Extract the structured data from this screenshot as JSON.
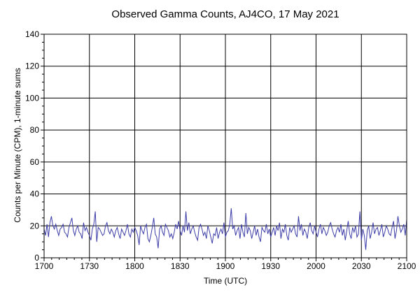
{
  "chart_data": {
    "type": "line",
    "title": "Observed Gamma Counts, AJ4CO, 17 May 2021",
    "xlabel": "Time (UTC)",
    "ylabel": "Counts per Minute (CPM), 1-minute sums",
    "x_ticks": [
      "1700",
      "1730",
      "1800",
      "1830",
      "1900",
      "1930",
      "2000",
      "2030",
      "2100"
    ],
    "y_ticks": [
      "0",
      "20",
      "40",
      "60",
      "80",
      "100",
      "120",
      "140"
    ],
    "xlim": [
      0,
      240
    ],
    "ylim": [
      0,
      140
    ],
    "grid": true,
    "series_color": "#3c3ca8",
    "series": [
      {
        "values": [
          18,
          14,
          21,
          13,
          22,
          26,
          20,
          18,
          21,
          17,
          14,
          18,
          19,
          21,
          16,
          15,
          13,
          19,
          22,
          25,
          17,
          14,
          18,
          20,
          16,
          15,
          12,
          22,
          17,
          19,
          16,
          14,
          11,
          18,
          21,
          29,
          10,
          19,
          18,
          16,
          14,
          15,
          20,
          22,
          17,
          15,
          18,
          16,
          13,
          17,
          19,
          15,
          12,
          18,
          16,
          14,
          17,
          21,
          15,
          13,
          18,
          16,
          19,
          17,
          14,
          8,
          20,
          17,
          15,
          19,
          21,
          12,
          10,
          14,
          19,
          25,
          15,
          13,
          6,
          18,
          20,
          16,
          14,
          21,
          19,
          17,
          13,
          15,
          12,
          16,
          21,
          18,
          23,
          17,
          14,
          20,
          16,
          29,
          17,
          22,
          15,
          18,
          20,
          16,
          13,
          11,
          19,
          21,
          18,
          14,
          16,
          12,
          20,
          17,
          13,
          9,
          15,
          14,
          19,
          12,
          16,
          18,
          15,
          22,
          13,
          16,
          17,
          21,
          31,
          18,
          20,
          14,
          17,
          19,
          12,
          21,
          16,
          13,
          28,
          15,
          19,
          17,
          12,
          16,
          20,
          14,
          18,
          13,
          10,
          19,
          17,
          16,
          21,
          15,
          18,
          13,
          16,
          19,
          14,
          20,
          17,
          22,
          12,
          18,
          16,
          21,
          14,
          11,
          19,
          16,
          18,
          20,
          15,
          13,
          26,
          17,
          21,
          14,
          18,
          16,
          12,
          19,
          22,
          17,
          15,
          20,
          16,
          13,
          18,
          21,
          15,
          19,
          17,
          14,
          16,
          20,
          22,
          18,
          15,
          13,
          17,
          19,
          16,
          21,
          14,
          18,
          11,
          17,
          23,
          15,
          12,
          19,
          16,
          20,
          13,
          15,
          29,
          11,
          18,
          14,
          5,
          17,
          20,
          12,
          16,
          22,
          15,
          18,
          19,
          14,
          17,
          21,
          13,
          16,
          20,
          18,
          15,
          14,
          19,
          23,
          12,
          17,
          26,
          20,
          16,
          18,
          21,
          14,
          24
        ]
      }
    ]
  }
}
